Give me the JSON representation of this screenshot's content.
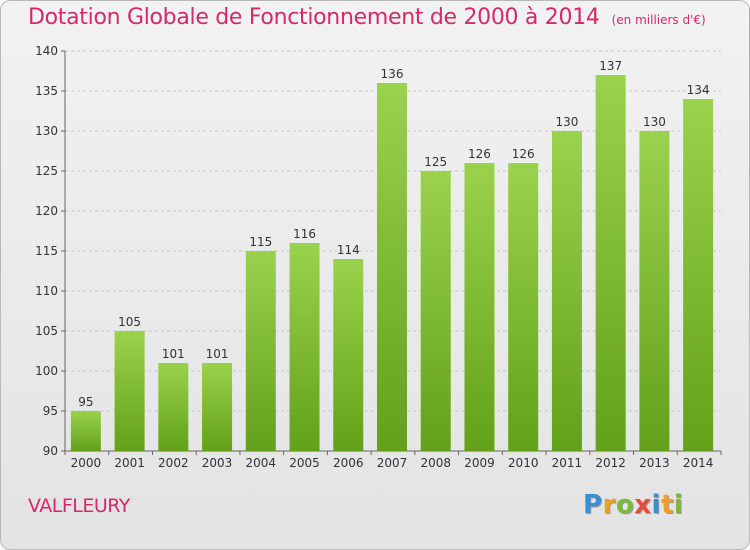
{
  "chart_data": {
    "type": "bar",
    "title": "Dotation Globale de Fonctionnement de 2000 à 2014",
    "subtitle": "(en milliers d'€)",
    "categories": [
      "2000",
      "2001",
      "2002",
      "2003",
      "2004",
      "2005",
      "2006",
      "2007",
      "2008",
      "2009",
      "2010",
      "2011",
      "2012",
      "2013",
      "2014"
    ],
    "values": [
      95,
      105,
      101,
      101,
      115,
      116,
      114,
      136,
      125,
      126,
      126,
      130,
      137,
      130,
      134
    ],
    "ylim": [
      90,
      140
    ],
    "yticks": [
      90,
      95,
      100,
      105,
      110,
      115,
      120,
      125,
      130,
      135,
      140
    ],
    "grid": true,
    "bar_color": "#7fbf35"
  },
  "commune": "VALFLEURY",
  "logo": {
    "letters": [
      "P",
      "r",
      "o",
      "x",
      "i",
      "t",
      "i"
    ],
    "colors": [
      "#3a8fd1",
      "#f0a01a",
      "#7ab93a",
      "#e84b3c",
      "#3a8fd1",
      "#f0a01a",
      "#7ab93a"
    ]
  }
}
